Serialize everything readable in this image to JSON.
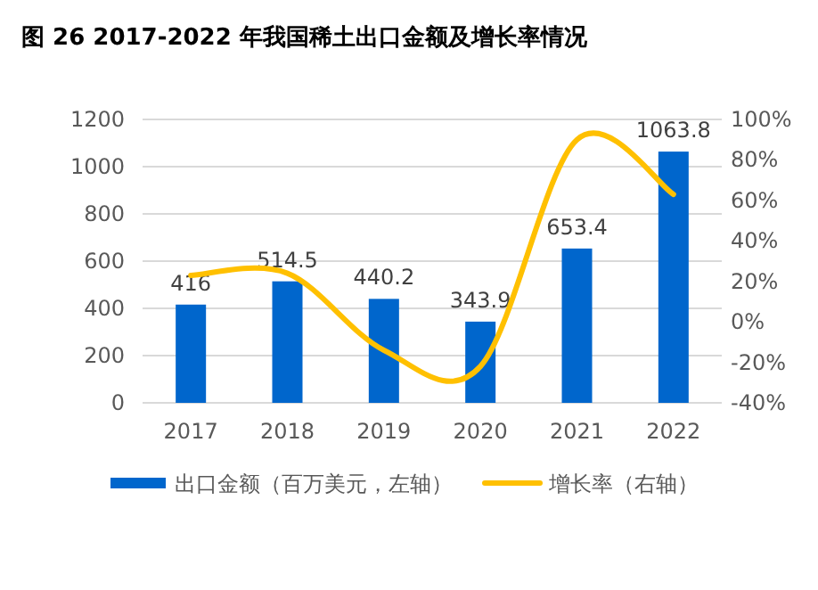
{
  "chart_data": {
    "type": "bar",
    "title": "图 26 2017-2022 年我国稀土出口金额及增长率情况",
    "categories": [
      "2017",
      "2018",
      "2019",
      "2020",
      "2021",
      "2022"
    ],
    "series": [
      {
        "name": "出口金额（百万美元，左轴）",
        "color": "#0066cc",
        "values": [
          416,
          514.5,
          440.2,
          343.9,
          653.4,
          1063.8
        ],
        "value_labels": [
          "416",
          "514.5",
          "440.2",
          "343.9",
          "653.4",
          "1063.8"
        ]
      },
      {
        "name": "增长率（右轴）",
        "type": "line",
        "axis": "y2",
        "color": "#ffc000",
        "values": [
          23,
          24,
          -14,
          -22,
          90,
          63
        ]
      }
    ],
    "ylim": [
      0,
      1200
    ],
    "yticks": [
      0,
      200,
      400,
      600,
      800,
      1000,
      1200
    ],
    "y2lim": [
      -40,
      100
    ],
    "y2ticks": [
      {
        "value": -40,
        "label": "-40%"
      },
      {
        "value": -20,
        "label": "-20%"
      },
      {
        "value": 0,
        "label": "0%"
      },
      {
        "value": 20,
        "label": "20%"
      },
      {
        "value": 40,
        "label": "40%"
      },
      {
        "value": 60,
        "label": "60%"
      },
      {
        "value": 80,
        "label": "80%"
      },
      {
        "value": 100,
        "label": "100%"
      }
    ],
    "grid": "y",
    "legend": "bottom"
  }
}
